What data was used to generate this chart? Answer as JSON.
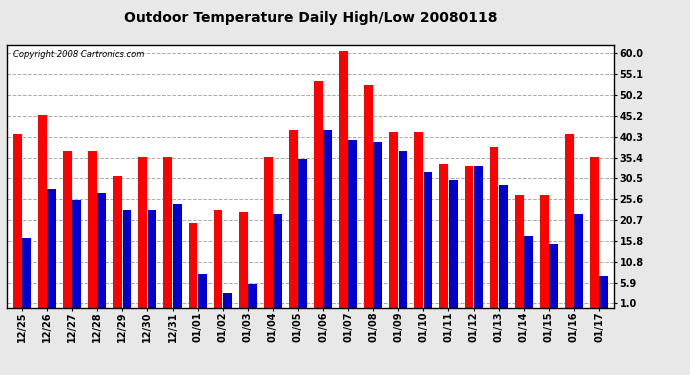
{
  "title": "Outdoor Temperature Daily High/Low 20080118",
  "copyright": "Copyright 2008 Cartronics.com",
  "labels": [
    "12/25",
    "12/26",
    "12/27",
    "12/28",
    "12/29",
    "12/30",
    "12/31",
    "01/01",
    "01/02",
    "01/03",
    "01/04",
    "01/05",
    "01/06",
    "01/07",
    "01/08",
    "01/09",
    "01/10",
    "01/11",
    "01/12",
    "01/13",
    "01/14",
    "01/15",
    "01/16",
    "01/17"
  ],
  "highs": [
    41.0,
    45.5,
    37.0,
    37.0,
    31.0,
    35.5,
    35.5,
    20.0,
    23.0,
    22.5,
    35.5,
    42.0,
    53.5,
    60.5,
    52.5,
    41.5,
    41.5,
    34.0,
    33.5,
    38.0,
    26.5,
    26.5,
    41.0,
    35.5
  ],
  "lows": [
    16.5,
    28.0,
    25.5,
    27.0,
    23.0,
    23.0,
    24.5,
    8.0,
    3.5,
    5.5,
    22.0,
    35.0,
    42.0,
    39.5,
    39.0,
    37.0,
    32.0,
    30.0,
    33.5,
    29.0,
    17.0,
    15.0,
    22.0,
    7.5
  ],
  "high_color": "#ff0000",
  "low_color": "#0000cc",
  "bg_color": "#e8e8e8",
  "plot_bg_color": "#ffffff",
  "yticks": [
    1.0,
    5.9,
    10.8,
    15.8,
    20.7,
    25.6,
    30.5,
    35.4,
    40.3,
    45.2,
    50.2,
    55.1,
    60.0
  ],
  "ylim": [
    0,
    62
  ],
  "grid_color": "#aaaaaa",
  "title_fontsize": 10,
  "copyright_fontsize": 6,
  "tick_fontsize": 7,
  "bar_width": 0.35,
  "bar_gap": 0.02
}
